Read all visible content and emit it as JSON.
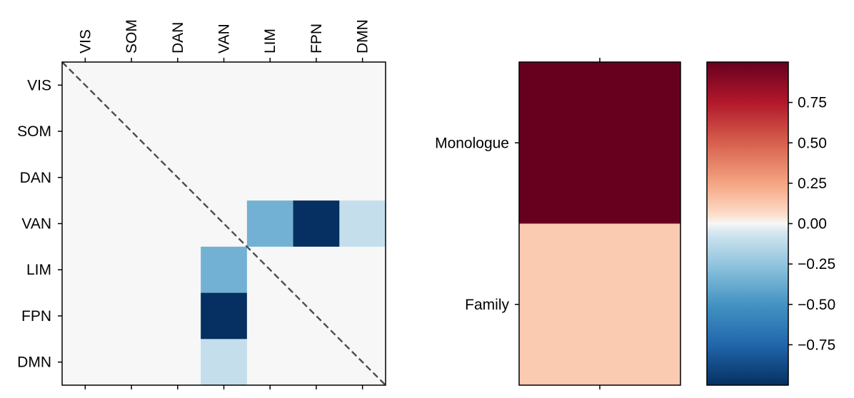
{
  "chart_data": [
    {
      "type": "heatmap",
      "title": "",
      "xlabel": "",
      "ylabel": "",
      "x_ticks": [
        "VIS",
        "SOM",
        "DAN",
        "VAN",
        "LIM",
        "FPN",
        "DMN"
      ],
      "y_ticks": [
        "VIS",
        "SOM",
        "DAN",
        "VAN",
        "LIM",
        "FPN",
        "DMN"
      ],
      "diagonal_line": "dashed",
      "values": [
        [
          0,
          0,
          0,
          0,
          0,
          0,
          0
        ],
        [
          0,
          0,
          0,
          0,
          0,
          0,
          0
        ],
        [
          0,
          0,
          0,
          0,
          0,
          0,
          0
        ],
        [
          0,
          0,
          0,
          0,
          -0.35,
          -1.0,
          -0.1
        ],
        [
          0,
          0,
          0,
          -0.35,
          0,
          0,
          0
        ],
        [
          0,
          0,
          0,
          -1.0,
          0,
          0,
          0
        ],
        [
          0,
          0,
          0,
          -0.1,
          0,
          0,
          0
        ]
      ]
    },
    {
      "type": "heatmap",
      "title": "",
      "xlabel": "",
      "ylabel": "",
      "y_ticks": [
        "Monologue",
        "Family"
      ],
      "values": [
        [
          1.0
        ],
        [
          0.12
        ]
      ]
    }
  ],
  "colorbar": {
    "colormap": "RdBu_r",
    "range": [
      -1.0,
      1.0
    ],
    "ticks": [
      0.75,
      0.5,
      0.25,
      0.0,
      -0.25,
      -0.5,
      -0.75
    ],
    "tick_labels": [
      "0.75",
      "0.50",
      "0.25",
      "0.00",
      "−0.25",
      "−0.50",
      "−0.75"
    ]
  },
  "colors": {
    "frame": "#000000",
    "diagonal": "#4d4d4d"
  }
}
